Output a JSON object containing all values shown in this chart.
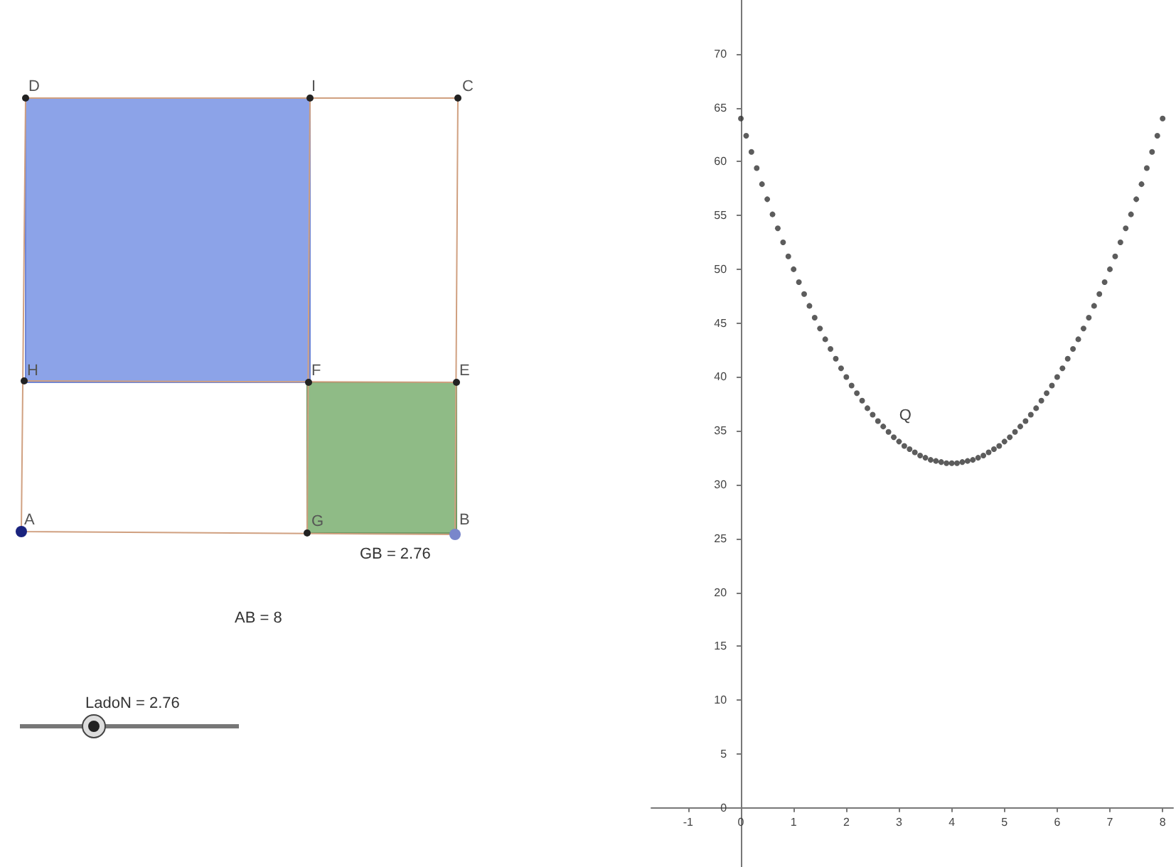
{
  "chart_data": [
    {
      "type": "other",
      "colors": [
        "#8ca3e8",
        "#8fbb86"
      ],
      "annotations": [
        "D",
        "I",
        "C",
        "H",
        "F",
        "E",
        "A",
        "G",
        "B",
        "GB = 2.76",
        "AB = 8",
        "LadoN = 2.76"
      ]
    },
    {
      "type": "scatter",
      "x": [
        0,
        0.1,
        0.2,
        0.3,
        0.4,
        0.5,
        0.6,
        0.7,
        0.8,
        0.9,
        1,
        1.1,
        1.2,
        1.3,
        1.4,
        1.5,
        1.6,
        1.7,
        1.8,
        1.9,
        2,
        2.1,
        2.2,
        2.3,
        2.4,
        2.5,
        2.6,
        2.7,
        2.8,
        2.9,
        3,
        3.1,
        3.2,
        3.3,
        3.4,
        3.5,
        3.6,
        3.7,
        3.8,
        3.9,
        4,
        4.1,
        4.2,
        4.3,
        4.4,
        4.5,
        4.6,
        4.7,
        4.8,
        4.9,
        5,
        5.1,
        5.2,
        5.3,
        5.4,
        5.5,
        5.6,
        5.7,
        5.8,
        5.9,
        6,
        6.1,
        6.2,
        6.3,
        6.4,
        6.5,
        6.6,
        6.7,
        6.8,
        6.9,
        7,
        7.1,
        7.2,
        7.3,
        7.4,
        7.5,
        7.6,
        7.7,
        7.8,
        7.9,
        8
      ],
      "series": [
        {
          "color": "#333333",
          "values": [
            64,
            62.4,
            60.9,
            59.4,
            57.9,
            56.5,
            55.1,
            53.8,
            52.5,
            51.2,
            50,
            48.8,
            47.7,
            46.6,
            45.5,
            44.5,
            43.5,
            42.6,
            41.7,
            40.8,
            40,
            39.2,
            38.5,
            37.8,
            37.1,
            36.5,
            35.9,
            35.4,
            34.9,
            34.4,
            34,
            33.6,
            33.3,
            33,
            32.7,
            32.5,
            32.3,
            32.2,
            32.1,
            32,
            32,
            32,
            32.1,
            32.2,
            32.3,
            32.5,
            32.7,
            33,
            33.3,
            33.6,
            34,
            34.4,
            34.9,
            35.4,
            35.9,
            36.5,
            37.1,
            37.8,
            38.5,
            39.2,
            40,
            40.8,
            41.7,
            42.6,
            43.5,
            44.5,
            45.5,
            46.6,
            47.7,
            48.8,
            50,
            51.2,
            52.5,
            53.8,
            55.1,
            56.5,
            57.9,
            59.4,
            60.9,
            62.4,
            64
          ]
        }
      ],
      "xlim": [
        -1.7,
        8.2
      ],
      "ylim": [
        -5.5,
        75
      ],
      "xticks": [
        -1,
        0,
        1,
        2,
        3,
        4,
        5,
        6,
        7,
        8
      ],
      "yticks": [
        0,
        5,
        10,
        15,
        20,
        25,
        30,
        35,
        40,
        45,
        50,
        55,
        60,
        65,
        70
      ],
      "annotations": [
        {
          "text": "Q",
          "x": 2.76,
          "y": 35.1
        }
      ],
      "grid": false,
      "marker": "circle"
    }
  ]
}
